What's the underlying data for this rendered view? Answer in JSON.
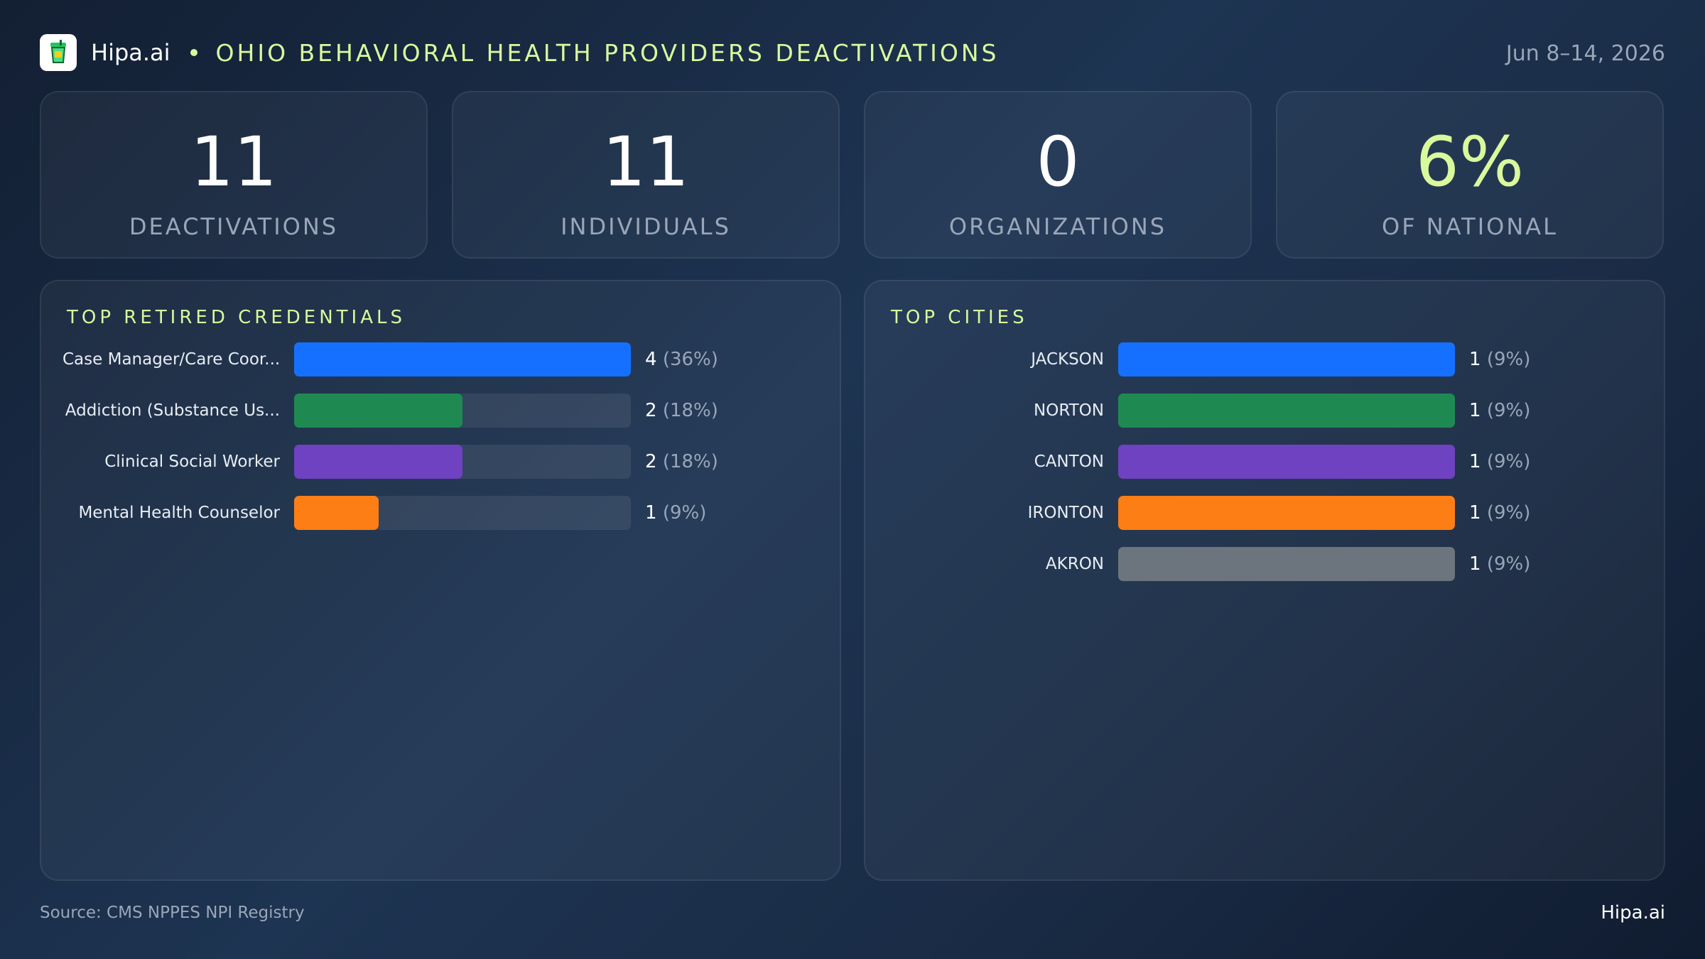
{
  "header": {
    "brand": "Hipa.ai",
    "title": "OHIO BEHAVIORAL HEALTH PROVIDERS DEACTIVATIONS",
    "date": "Jun 8–14, 2026",
    "logo_icon": "cup-icon"
  },
  "stats": [
    {
      "value": "11",
      "label": "DEACTIVATIONS"
    },
    {
      "value": "11",
      "label": "INDIVIDUALS"
    },
    {
      "value": "0",
      "label": "ORGANIZATIONS"
    },
    {
      "value": "6%",
      "label": "OF NATIONAL",
      "accent": "#d9f99d"
    }
  ],
  "chart_data": [
    {
      "type": "bar",
      "orientation": "horizontal",
      "title": "TOP RETIRED CREDENTIALS",
      "categories": [
        "Case Manager/Care Coor...",
        "Addiction (Substance Us...",
        "Clinical Social Worker",
        "Mental Health Counselor"
      ],
      "values": [
        4,
        2,
        2,
        1
      ],
      "value_labels": [
        "4",
        "2",
        "2",
        "1"
      ],
      "percent_labels": [
        "(36%)",
        "(18%)",
        "(18%)",
        "(9%)"
      ],
      "colors": [
        "#1570ff",
        "#1e8a52",
        "#6f42c1",
        "#fd7e14"
      ],
      "xlim": [
        0,
        4
      ]
    },
    {
      "type": "bar",
      "orientation": "horizontal",
      "title": "TOP CITIES",
      "categories": [
        "JACKSON",
        "NORTON",
        "CANTON",
        "IRONTON",
        "AKRON"
      ],
      "values": [
        1,
        1,
        1,
        1,
        1
      ],
      "value_labels": [
        "1",
        "1",
        "1",
        "1",
        "1"
      ],
      "percent_labels": [
        "(9%)",
        "(9%)",
        "(9%)",
        "(9%)",
        "(9%)"
      ],
      "colors": [
        "#1570ff",
        "#1e8a52",
        "#6f42c1",
        "#fd7e14",
        "#6c757d"
      ],
      "xlim": [
        0,
        1
      ]
    }
  ],
  "footer": {
    "source": "Source: CMS NPPES NPI Registry",
    "brand": "Hipa.ai"
  }
}
